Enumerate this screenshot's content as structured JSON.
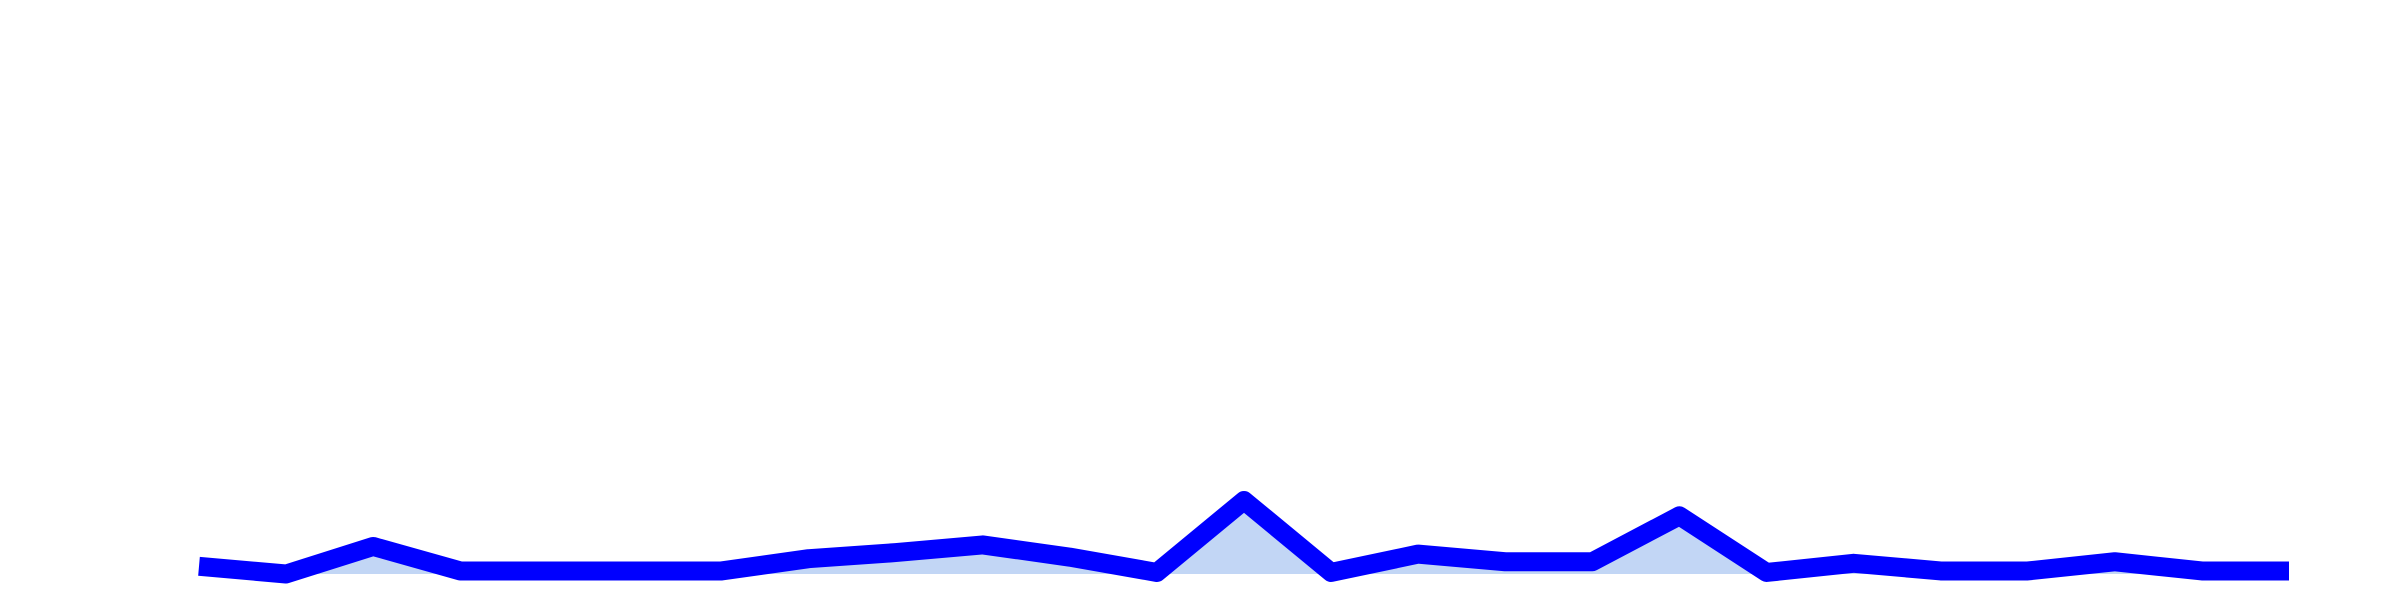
{
  "chart_data": {
    "type": "line",
    "values": [
      5,
      0,
      18,
      2,
      2,
      2,
      2,
      10,
      14,
      19,
      11,
      1,
      48,
      1,
      13,
      8,
      8,
      38,
      1,
      7,
      2,
      2,
      8,
      2,
      2
    ],
    "color": "#0000ff",
    "area_color": "#c2d6f5",
    "ylim": [
      0,
      375
    ]
  }
}
